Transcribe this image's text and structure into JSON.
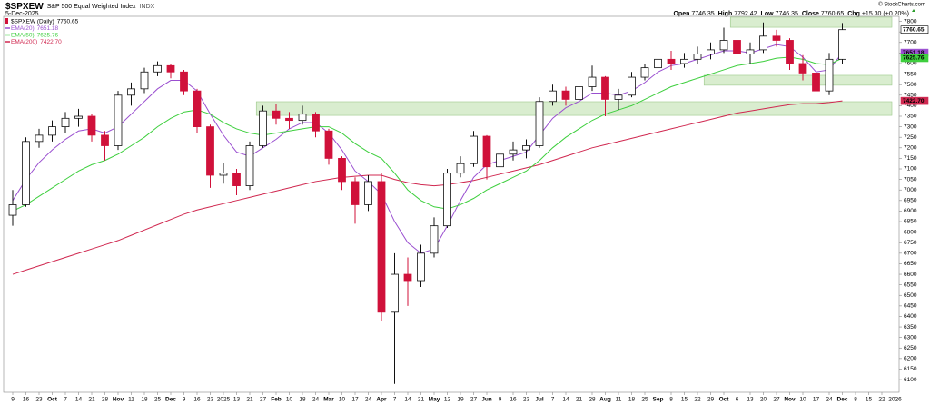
{
  "chart_data": {
    "type": "candlestick",
    "title": "$SPXEW",
    "subtitle": "S&P 500 Equal Weighted Index",
    "exchange": "INDX",
    "date": "5-Dec-2025",
    "credit": "© StockCharts.com",
    "quote": [
      {
        "label": "Open",
        "value": "7746.35"
      },
      {
        "label": "High",
        "value": "7792.42"
      },
      {
        "label": "Low",
        "value": "7746.35"
      },
      {
        "label": "Close",
        "value": "7760.65"
      },
      {
        "label": "Chg",
        "value": "+15.30 (+0.20%)"
      }
    ],
    "categories": [
      "9",
      "16",
      "23",
      "Oct",
      "7",
      "14",
      "21",
      "28",
      "Nov",
      "11",
      "18",
      "25",
      "Dec",
      "9",
      "16",
      "23",
      "2025",
      "13",
      "21",
      "27",
      "Feb",
      "10",
      "18",
      "24",
      "Mar",
      "10",
      "17",
      "24",
      "Apr",
      "7",
      "14",
      "21",
      "May",
      "12",
      "19",
      "27",
      "Jun",
      "9",
      "16",
      "23",
      "Jul",
      "7",
      "14",
      "21",
      "28",
      "Aug",
      "11",
      "18",
      "25",
      "Sep",
      "8",
      "15",
      "22",
      "29",
      "Oct",
      "6",
      "13",
      "20",
      "27",
      "Nov",
      "10",
      "17",
      "24",
      "Dec",
      "8",
      "15",
      "22",
      "2026"
    ],
    "ylim": [
      6040,
      7824
    ],
    "yticks": [
      6100,
      6150,
      6200,
      6250,
      6300,
      6350,
      6400,
      6450,
      6500,
      6550,
      6600,
      6650,
      6700,
      6750,
      6800,
      6850,
      6900,
      6950,
      7000,
      7050,
      7100,
      7150,
      7200,
      7250,
      7300,
      7350,
      7400,
      7450,
      7500,
      7550,
      7600,
      7650,
      7700,
      7750,
      7800
    ],
    "grid": false,
    "ohlc": {
      "name": "$SPXEW (Daily)",
      "last_label": "7760.65",
      "up_color": "#111111",
      "down_color": "#d0113a",
      "open": [
        6880,
        6930,
        7230,
        7260,
        7300,
        7340,
        7350,
        7260,
        7210,
        7450,
        7480,
        7560,
        7590,
        7560,
        7470,
        7300,
        7070,
        7080,
        7020,
        7210,
        7375,
        7340,
        7330,
        7360,
        7280,
        7150,
        7040,
        6930,
        7040,
        6420,
        6600,
        6570,
        6700,
        6830,
        7080,
        7125,
        7255,
        7110,
        7170,
        7190,
        7210,
        7420,
        7470,
        7430,
        7490,
        7535,
        7430,
        7450,
        7535,
        7580,
        7620,
        7600,
        7620,
        7645,
        7665,
        7710,
        7645,
        7665,
        7730,
        7710,
        7600,
        7555,
        7470,
        7620,
        null,
        null,
        null,
        null
      ],
      "high": [
        7000,
        7250,
        7290,
        7330,
        7370,
        7385,
        7360,
        7280,
        7470,
        7510,
        7580,
        7610,
        7600,
        7570,
        7480,
        7310,
        7130,
        7100,
        7230,
        7400,
        7410,
        7370,
        7400,
        7370,
        7290,
        7160,
        7060,
        7070,
        7080,
        6700,
        6680,
        6740,
        6870,
        7100,
        7160,
        7280,
        7260,
        7200,
        7230,
        7240,
        7440,
        7500,
        7490,
        7520,
        7590,
        7540,
        7480,
        7560,
        7600,
        7650,
        7660,
        7650,
        7680,
        7700,
        7770,
        7720,
        7700,
        7795,
        7760,
        7720,
        7640,
        7580,
        7650,
        7792.42,
        null,
        null,
        null,
        null
      ],
      "low": [
        6830,
        6920,
        7200,
        7230,
        7270,
        7300,
        7230,
        7140,
        7190,
        7400,
        7460,
        7540,
        7530,
        7450,
        7270,
        7010,
        7030,
        6975,
        7000,
        7200,
        7310,
        7290,
        7310,
        7250,
        7120,
        7000,
        6840,
        6900,
        6380,
        6080,
        6450,
        6540,
        6680,
        6820,
        7060,
        7110,
        7050,
        7080,
        7140,
        7150,
        7200,
        7400,
        7400,
        7410,
        7470,
        7350,
        7380,
        7440,
        7520,
        7560,
        7570,
        7580,
        7600,
        7620,
        7650,
        7515,
        7600,
        7650,
        7680,
        7570,
        7520,
        7375,
        7450,
        7600,
        null,
        null,
        null,
        null
      ],
      "close": [
        6930,
        7230,
        7260,
        7300,
        7340,
        7350,
        7260,
        7210,
        7450,
        7480,
        7560,
        7590,
        7560,
        7470,
        7300,
        7070,
        7080,
        7020,
        7210,
        7375,
        7340,
        7330,
        7360,
        7280,
        7150,
        7040,
        6930,
        7040,
        6420,
        6600,
        6570,
        6700,
        6830,
        7080,
        7125,
        7255,
        7110,
        7170,
        7190,
        7210,
        7420,
        7470,
        7430,
        7490,
        7535,
        7430,
        7450,
        7535,
        7580,
        7620,
        7600,
        7620,
        7645,
        7665,
        7710,
        7645,
        7665,
        7730,
        7710,
        7600,
        7555,
        7470,
        7620,
        7760.65,
        null,
        null,
        null,
        null
      ]
    },
    "series": [
      {
        "name": "EMA(20)",
        "last_label": "7651.18",
        "color": "#9a4fd0",
        "values": [
          6950,
          7050,
          7130,
          7190,
          7240,
          7280,
          7290,
          7270,
          7300,
          7360,
          7420,
          7480,
          7520,
          7520,
          7470,
          7360,
          7260,
          7180,
          7160,
          7200,
          7240,
          7290,
          7320,
          7320,
          7270,
          7190,
          7090,
          7040,
          6980,
          6850,
          6750,
          6700,
          6720,
          6830,
          6950,
          7060,
          7120,
          7140,
          7160,
          7180,
          7260,
          7340,
          7390,
          7420,
          7460,
          7460,
          7450,
          7470,
          7510,
          7560,
          7590,
          7600,
          7620,
          7640,
          7660,
          7660,
          7650,
          7670,
          7690,
          7680,
          7630,
          7560,
          7570,
          7651.18,
          null,
          null,
          null,
          null
        ]
      },
      {
        "name": "EMA(50)",
        "last_label": "7625.76",
        "color": "#3ecf3e",
        "values": [
          6900,
          6930,
          6970,
          7010,
          7050,
          7090,
          7120,
          7140,
          7170,
          7210,
          7250,
          7300,
          7340,
          7370,
          7380,
          7360,
          7320,
          7290,
          7270,
          7260,
          7270,
          7280,
          7290,
          7300,
          7300,
          7270,
          7220,
          7180,
          7150,
          7080,
          7000,
          6950,
          6920,
          6910,
          6930,
          6960,
          7000,
          7030,
          7060,
          7090,
          7140,
          7200,
          7250,
          7290,
          7330,
          7360,
          7380,
          7400,
          7430,
          7460,
          7490,
          7510,
          7530,
          7550,
          7570,
          7590,
          7600,
          7610,
          7625,
          7630,
          7620,
          7600,
          7595,
          7625.76,
          null,
          null,
          null,
          null
        ]
      },
      {
        "name": "EMA(200)",
        "last_label": "7422.70",
        "color": "#d02850",
        "values": [
          6600,
          6620,
          6640,
          6660,
          6680,
          6700,
          6720,
          6740,
          6760,
          6785,
          6810,
          6835,
          6860,
          6885,
          6905,
          6920,
          6935,
          6950,
          6965,
          6980,
          6995,
          7010,
          7025,
          7040,
          7050,
          7060,
          7065,
          7070,
          7070,
          7050,
          7035,
          7025,
          7020,
          7025,
          7035,
          7045,
          7060,
          7075,
          7090,
          7105,
          7120,
          7140,
          7160,
          7180,
          7200,
          7215,
          7230,
          7245,
          7260,
          7275,
          7290,
          7305,
          7320,
          7335,
          7350,
          7365,
          7375,
          7385,
          7395,
          7405,
          7410,
          7410,
          7415,
          7422.7,
          null,
          null,
          null,
          null
        ]
      }
    ],
    "zones": [
      {
        "low": 7772,
        "high": 7820,
        "start": 55
      },
      {
        "low": 7497,
        "high": 7544,
        "start": 53
      },
      {
        "low": 7354,
        "high": 7419,
        "start": 19
      }
    ],
    "zone_color": "#d9edcf"
  }
}
